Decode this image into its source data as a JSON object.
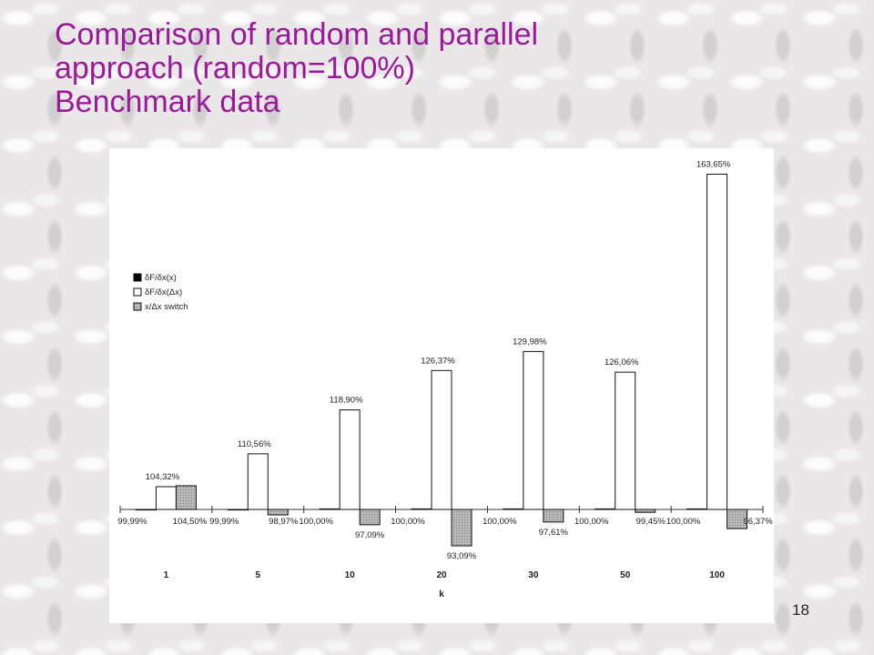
{
  "slide": {
    "title_lines": [
      "Comparison of random and parallel",
      "approach (random=100%)",
      "Benchmark data"
    ],
    "page_number": "18"
  },
  "colors": {
    "title": "#9a1a9a",
    "series_fills": [
      "#000000",
      "#ffffff",
      "#b8b8b8"
    ]
  },
  "chart_data": {
    "type": "bar",
    "baseline": 100,
    "xlabel": "k",
    "ylabel": "",
    "categories": [
      "1",
      "5",
      "10",
      "20",
      "30",
      "50",
      "100"
    ],
    "series": [
      {
        "name": "δF/δx(x)",
        "values": [
          99.99,
          99.99,
          100.0,
          100.0,
          100.0,
          100.0,
          100.0
        ],
        "labels": [
          "99,99%",
          "99,99%",
          "100,00%",
          "100,00%",
          "100,00%",
          "100,00%",
          "100,00%"
        ]
      },
      {
        "name": "δF/δx(Δx)",
        "values": [
          104.32,
          110.56,
          118.9,
          126.37,
          129.98,
          126.06,
          163.65
        ],
        "labels": [
          "104,32%",
          "110,56%",
          "118,90%",
          "126,37%",
          "129,98%",
          "126,06%",
          "163,65%"
        ]
      },
      {
        "name": "x/Δx switch",
        "values": [
          104.5,
          98.97,
          97.09,
          93.09,
          97.61,
          99.45,
          96.37
        ],
        "labels": [
          "104,50%",
          "98,97%",
          "97,09%",
          "93,09%",
          "97,61%",
          "99,45%",
          "96,37%"
        ]
      }
    ],
    "legend_position": "left",
    "grid": false
  }
}
